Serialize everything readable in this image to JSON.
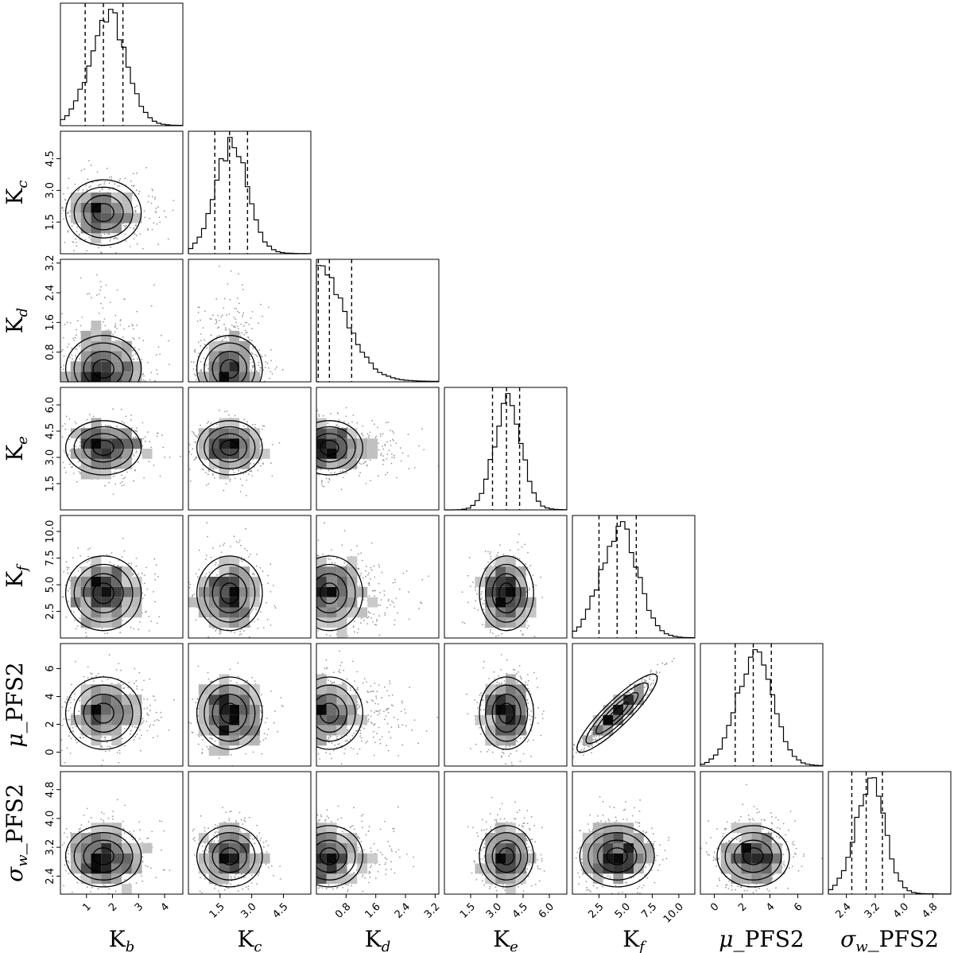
{
  "chart_data": {
    "type": "corner",
    "parameters": [
      {
        "id": "kb",
        "base": "K",
        "sub": "b",
        "prefix": "",
        "suffix": "",
        "range": [
          0,
          4.7
        ],
        "ticks": [
          1,
          2,
          3,
          4
        ],
        "tick_labels": [
          "1",
          "2",
          "3",
          "4"
        ],
        "median": 1.65,
        "q16": 0.95,
        "q84": 2.4
      },
      {
        "id": "kc",
        "base": "K",
        "sub": "c",
        "prefix": "",
        "suffix": "",
        "range": [
          0,
          5.8
        ],
        "ticks": [
          1.5,
          3.0,
          4.5
        ],
        "tick_labels": [
          "1.5",
          "3.0",
          "4.5"
        ],
        "median": 1.95,
        "q16": 1.25,
        "q84": 2.8
      },
      {
        "id": "kd",
        "base": "K",
        "sub": "d",
        "prefix": "",
        "suffix": "",
        "range": [
          0,
          3.3
        ],
        "ticks": [
          0.8,
          1.6,
          2.4,
          3.2
        ],
        "tick_labels": [
          "0.8",
          "1.6",
          "2.4",
          "3.2"
        ],
        "median": 0.35,
        "q16": 0.05,
        "q84": 0.95
      },
      {
        "id": "ke",
        "base": "K",
        "sub": "e",
        "prefix": "",
        "suffix": "",
        "range": [
          0,
          7.0
        ],
        "ticks": [
          1.5,
          3.0,
          4.5,
          6.0
        ],
        "tick_labels": [
          "1.5",
          "3.0",
          "4.5",
          "6.0"
        ],
        "median": 3.55,
        "q16": 2.75,
        "q84": 4.3
      },
      {
        "id": "kf",
        "base": "K",
        "sub": "f",
        "prefix": "",
        "suffix": "",
        "range": [
          0,
          11.5
        ],
        "ticks": [
          2.5,
          5.0,
          7.5,
          10.0
        ],
        "tick_labels": [
          "2.5",
          "5.0",
          "7.5",
          "10.0"
        ],
        "median": 4.2,
        "q16": 2.5,
        "q84": 6.0
      },
      {
        "id": "mu",
        "base": "",
        "sub": "",
        "prefix": "μ",
        "prefix_sub": "",
        "suffix": "_PFS2",
        "range": [
          -1.0,
          7.8
        ],
        "ticks": [
          0,
          2,
          4,
          6
        ],
        "tick_labels": [
          "0",
          "2",
          "4",
          "6"
        ],
        "median": 2.8,
        "q16": 1.5,
        "q84": 4.1
      },
      {
        "id": "sw",
        "base": "",
        "sub": "",
        "prefix": "σ",
        "prefix_sub": "w",
        "suffix": "_PFS2",
        "range": [
          1.9,
          5.3
        ],
        "ticks": [
          2.4,
          3.2,
          4.0,
          4.8
        ],
        "tick_labels": [
          "2.4",
          "3.2",
          "4.0",
          "4.8"
        ],
        "median": 2.95,
        "q16": 2.55,
        "q84": 3.4
      }
    ],
    "correlations": [
      {
        "a": "kf",
        "b": "mu",
        "rho": 0.95
      }
    ],
    "quantile_lines": "dashed",
    "grid": false,
    "legend": "none"
  }
}
